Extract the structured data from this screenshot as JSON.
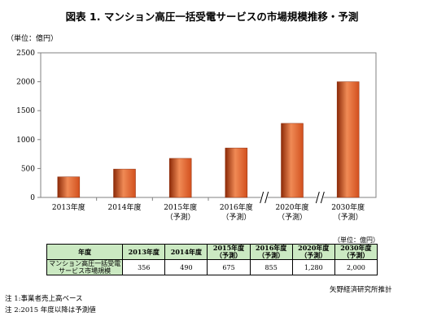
{
  "title": "図表 1. マンション高圧一括受電サービスの市場規模推移・予測",
  "chart_data": {
    "type": "bar",
    "unit_label": "（単位：億円）",
    "categories": [
      [
        "2013年度"
      ],
      [
        "2014年度"
      ],
      [
        "2015年度",
        "（予測）"
      ],
      [
        "2016年度",
        "（予測）"
      ],
      [
        "2020年度",
        "（予測）"
      ],
      [
        "2030年度",
        "（予測）"
      ]
    ],
    "values": [
      356,
      490,
      675,
      855,
      1280,
      2000
    ],
    "yticks": [
      "0",
      "500",
      "1000",
      "1500",
      "2000",
      "2500"
    ],
    "ylim": [
      0,
      2500
    ],
    "axis_breaks_after_index": [
      3,
      4
    ],
    "bar_color": "#d2501e",
    "bar_color_dark": "#8c2a08",
    "bar_color_light": "#f08a55"
  },
  "table": {
    "unit": "（単位：億円）",
    "header": {
      "label": "年度",
      "years": [
        [
          "2013年度"
        ],
        [
          "2014年度"
        ],
        [
          "2015年度",
          "（予測）"
        ],
        [
          "2016年度",
          "（予測）"
        ],
        [
          "2020年度",
          "（予測）"
        ],
        [
          "2030年度",
          "（予測）"
        ]
      ]
    },
    "row": {
      "label_line1": "マンション高圧一括受電",
      "label_line2": "サービス市場規模",
      "values": [
        "356",
        "490",
        "675",
        "855",
        "1,280",
        "2,000"
      ]
    },
    "header_color": "#cbe9c2"
  },
  "source": "矢野経済研究所推計",
  "notes": [
    "注 1:事業者売上高ベース",
    "注 2:2015 年度以降は予測値"
  ]
}
